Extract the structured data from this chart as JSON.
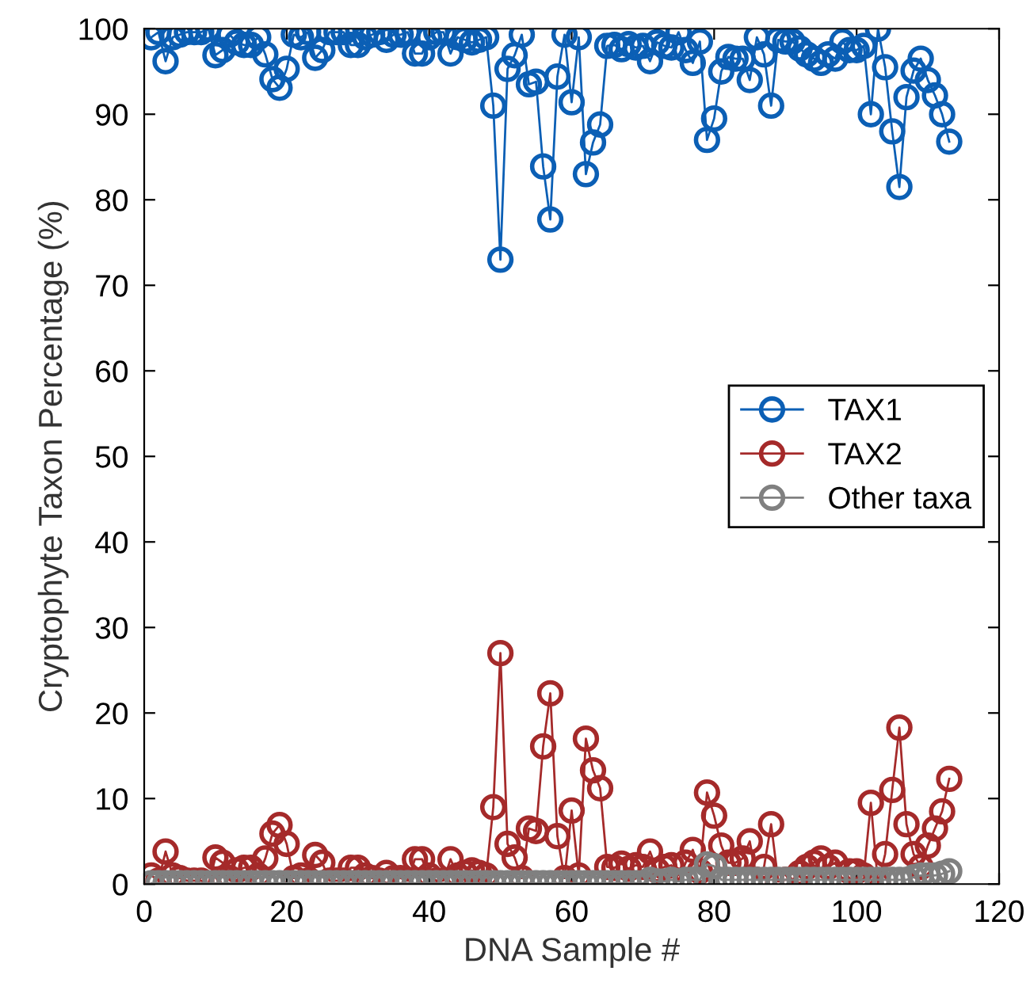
{
  "chart_data": {
    "type": "line",
    "xlabel": "DNA Sample #",
    "ylabel": "Cryptophyte Taxon Percentage (%)",
    "x": [
      1,
      2,
      3,
      4,
      5,
      6,
      7,
      8,
      9,
      10,
      11,
      12,
      13,
      14,
      15,
      16,
      17,
      18,
      19,
      20,
      21,
      22,
      23,
      24,
      25,
      26,
      27,
      28,
      29,
      30,
      31,
      32,
      33,
      34,
      35,
      36,
      37,
      38,
      39,
      40,
      41,
      42,
      43,
      44,
      45,
      46,
      47,
      48,
      49,
      50,
      51,
      52,
      53,
      54,
      55,
      56,
      57,
      58,
      59,
      60,
      61,
      62,
      63,
      64,
      65,
      66,
      67,
      68,
      69,
      70,
      71,
      72,
      73,
      74,
      75,
      76,
      77,
      78,
      79,
      80,
      81,
      82,
      83,
      84,
      85,
      86,
      87,
      88,
      89,
      90,
      91,
      92,
      93,
      94,
      95,
      96,
      97,
      98,
      99,
      100,
      101,
      102,
      103,
      104,
      105,
      106,
      107,
      108,
      109,
      110,
      111,
      112,
      113
    ],
    "series": [
      {
        "name": "TAX1",
        "color": "#0b5fb5",
        "values": [
          99,
          99.6,
          96.2,
          99,
          99.3,
          99.6,
          99.6,
          99.6,
          100,
          96.9,
          97.5,
          99.3,
          98.4,
          98.1,
          98.1,
          99,
          97,
          94.1,
          93.1,
          95.3,
          99.3,
          99,
          99.6,
          96.6,
          97.5,
          99.6,
          99.6,
          99.6,
          98.1,
          98.1,
          99,
          99.3,
          99.6,
          98.7,
          99.3,
          99.3,
          99.6,
          97.1,
          97.1,
          99,
          99.6,
          99.6,
          97.1,
          99,
          98.7,
          98.4,
          98.7,
          99,
          91,
          73,
          95.3,
          96.9,
          99.3,
          93.5,
          93.8,
          83.9,
          77.7,
          94.4,
          99.3,
          91.4,
          99,
          83,
          86.7,
          88.8,
          98,
          98.1,
          97.6,
          98.2,
          97.8,
          98,
          96.2,
          98.4,
          98,
          97.8,
          99.6,
          97.5,
          96,
          98.5,
          87,
          89.5,
          95,
          96.7,
          96.5,
          96.5,
          94,
          99,
          97,
          91,
          98.7,
          98.5,
          98.5,
          97.7,
          97,
          96.5,
          96,
          97,
          96.5,
          98.5,
          97.5,
          97.5,
          98,
          90,
          100,
          95.5,
          88,
          81.5,
          92,
          95.1,
          96.5,
          94,
          92.2,
          90,
          86.8
        ]
      },
      {
        "name": "TAX2",
        "color": "#a52a2a",
        "values": [
          1,
          0.4,
          3.8,
          1,
          0.7,
          0.4,
          0.4,
          0.4,
          0,
          3.1,
          2.5,
          0.7,
          1.6,
          1.9,
          1.9,
          1,
          3,
          5.9,
          6.9,
          4.7,
          0.7,
          1,
          0.4,
          3.4,
          2.5,
          0.4,
          0.4,
          0.4,
          1.9,
          1.9,
          1,
          0.7,
          0.4,
          1.3,
          0.7,
          0.7,
          0.4,
          2.9,
          2.9,
          1,
          0.4,
          0.4,
          2.9,
          1,
          1.3,
          1.6,
          1.3,
          1,
          9,
          27,
          4.7,
          3.1,
          0.7,
          6.5,
          6.2,
          16.1,
          22.3,
          5.6,
          0.7,
          8.6,
          1,
          17,
          13.3,
          11.2,
          2,
          1.9,
          2.4,
          1.8,
          2.2,
          2,
          3.8,
          1.6,
          2,
          2.2,
          0.4,
          2.5,
          4,
          1.5,
          10.7,
          8,
          4.5,
          2.5,
          2.5,
          3,
          5,
          0.5,
          2,
          7,
          0.3,
          0.5,
          0.5,
          1.3,
          2,
          2.5,
          3,
          2,
          2.5,
          0.5,
          1.5,
          1.5,
          1,
          9.5,
          0,
          3.5,
          11,
          18.3,
          7,
          3.5,
          2,
          4.5,
          6.5,
          8.5,
          12.3
        ]
      },
      {
        "name": "Other taxa",
        "color": "#808080",
        "values": [
          0.1,
          0.1,
          0.1,
          0.1,
          0.1,
          0.1,
          0.1,
          0.1,
          0.1,
          0.1,
          0.1,
          0.1,
          0.1,
          0.1,
          0.1,
          0.1,
          0.1,
          0.1,
          0.1,
          0.1,
          0.1,
          0.1,
          0.1,
          0.1,
          0.1,
          0.1,
          0.1,
          0.1,
          0.1,
          0.1,
          0.1,
          0.1,
          0.1,
          0.1,
          0.1,
          0.1,
          0.1,
          0.1,
          0.1,
          0.1,
          0.1,
          0.1,
          0.1,
          0.1,
          0.1,
          0.1,
          0.1,
          0.1,
          0.1,
          0.1,
          0.1,
          0.1,
          0.1,
          0.1,
          0.1,
          0.1,
          0.1,
          0.1,
          0.1,
          0.1,
          0.1,
          0.1,
          0.1,
          0.1,
          0.1,
          0.1,
          0.1,
          0.1,
          0.1,
          0.1,
          0.5,
          0.3,
          0.3,
          0.5,
          0.3,
          0.5,
          0.5,
          0.5,
          2.3,
          2.1,
          0.5,
          0.5,
          0.5,
          0.5,
          0.5,
          0.5,
          0.5,
          0.5,
          0.5,
          0.5,
          0.5,
          0.5,
          0.5,
          0.5,
          0.5,
          0.5,
          0.5,
          0.5,
          0.5,
          0.5,
          0.5,
          0.5,
          0.5,
          0.5,
          0.5,
          0.5,
          0.5,
          0.8,
          1,
          1,
          1,
          1.2,
          1.5
        ]
      }
    ],
    "xlim": [
      0,
      120
    ],
    "xticks": [
      0,
      20,
      40,
      60,
      80,
      100,
      120
    ],
    "ylim": [
      0,
      100
    ],
    "yticks": [
      0,
      10,
      20,
      30,
      40,
      50,
      60,
      70,
      80,
      90,
      100
    ],
    "marker": "circle",
    "line_style": "solid",
    "legend": "right",
    "grid": false
  }
}
